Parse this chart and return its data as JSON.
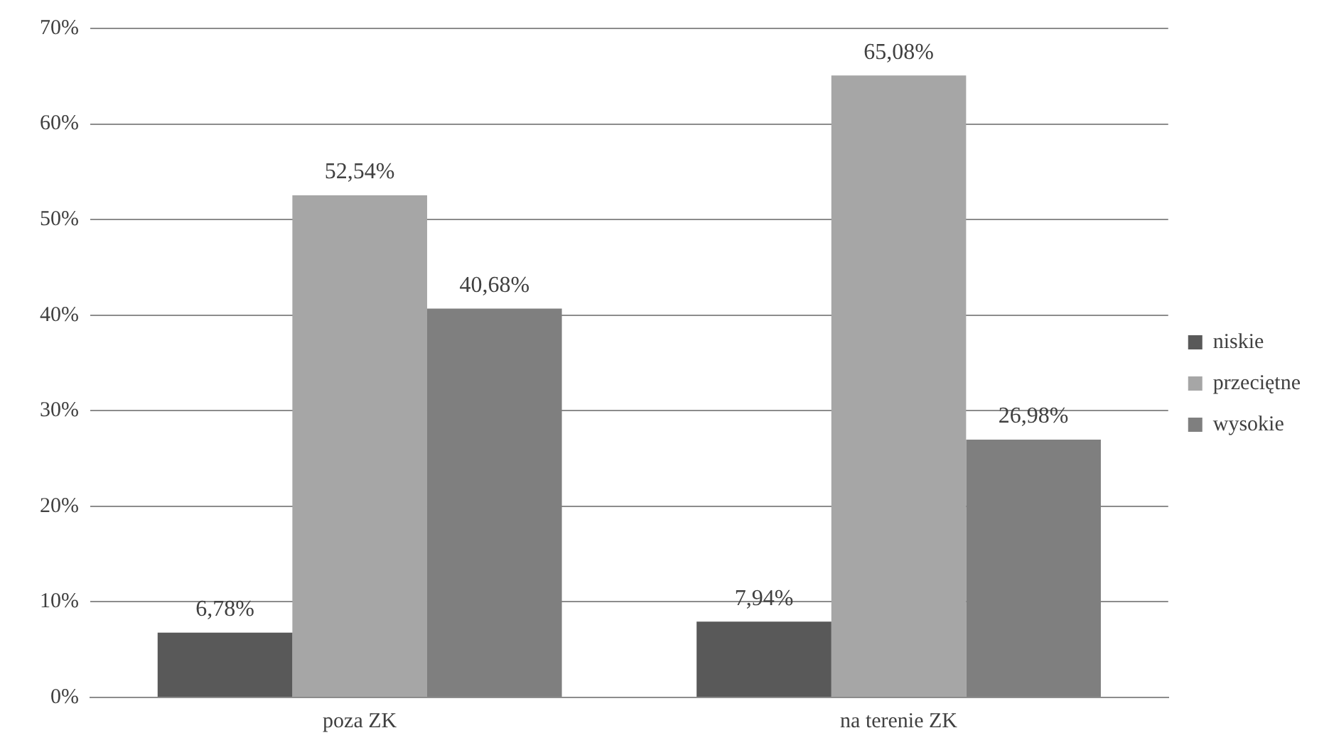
{
  "chart_data": {
    "type": "bar",
    "categories": [
      "poza ZK",
      "na terenie ZK"
    ],
    "series": [
      {
        "name": "niskie",
        "color": "#595959",
        "values": [
          6.78,
          7.94
        ],
        "value_labels": [
          "6,78%",
          "7,94%"
        ]
      },
      {
        "name": "przeciętne",
        "color": "#a6a6a6",
        "values": [
          52.54,
          65.08
        ],
        "value_labels": [
          "52,54%",
          "65,08%"
        ]
      },
      {
        "name": "wysokie",
        "color": "#7f7f7f",
        "values": [
          40.68,
          26.98
        ],
        "value_labels": [
          "40,68%",
          "26,98%"
        ]
      }
    ],
    "ylim": [
      0,
      70
    ],
    "yticks": [
      {
        "value": 0,
        "label": "0%"
      },
      {
        "value": 10,
        "label": "10%"
      },
      {
        "value": 20,
        "label": "20%"
      },
      {
        "value": 30,
        "label": "30%"
      },
      {
        "value": 40,
        "label": "40%"
      },
      {
        "value": 50,
        "label": "50%"
      },
      {
        "value": 60,
        "label": "60%"
      },
      {
        "value": 70,
        "label": "70%"
      }
    ],
    "grid": "y",
    "legend": "right"
  }
}
